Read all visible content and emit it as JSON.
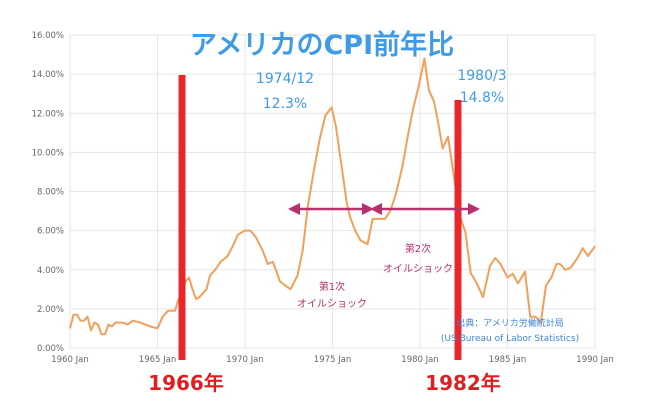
{
  "chart_data": {
    "type": "line",
    "title": "アメリカのCPI前年比",
    "x_ticks": [
      "1960 Jan",
      "1965 Jan",
      "1970 Jan",
      "1975 Jan",
      "1980 Jan",
      "1985 Jan",
      "1990 Jan"
    ],
    "y_ticks": [
      "0.00%",
      "2.00%",
      "4.00%",
      "6.00%",
      "8.00%",
      "10.00%",
      "12.00%",
      "14.00%",
      "16.00%"
    ],
    "xlim": [
      1960.0,
      1990.0
    ],
    "ylim": [
      0,
      16
    ],
    "grid": true,
    "line_color": "#f0a05a",
    "series": [
      {
        "x": [
          1960.0,
          1960.2,
          1960.4,
          1960.6,
          1960.8,
          1961.0,
          1961.2,
          1961.4,
          1961.6,
          1961.8,
          1962.0,
          1962.2,
          1962.4,
          1962.6,
          1962.8,
          1963.0,
          1963.3,
          1963.6,
          1964.0,
          1964.3,
          1964.6,
          1965.0,
          1965.3,
          1965.6,
          1966.0,
          1966.2,
          1966.4,
          1966.6,
          1966.8,
          1967.0,
          1967.2,
          1967.4,
          1967.6,
          1967.8,
          1968.0,
          1968.3,
          1968.6,
          1969.0,
          1969.3,
          1969.6,
          1970.0,
          1970.3,
          1970.6,
          1971.0,
          1971.3,
          1971.6,
          1972.0,
          1972.3,
          1972.6,
          1973.0,
          1973.3,
          1973.6,
          1974.0,
          1974.3,
          1974.6,
          1974.95,
          1975.2,
          1975.5,
          1975.8,
          1976.0,
          1976.3,
          1976.6,
          1977.0,
          1977.3,
          1977.6,
          1978.0,
          1978.3,
          1978.6,
          1979.0,
          1979.3,
          1979.6,
          1979.9,
          1980.25,
          1980.5,
          1980.8,
          1981.0,
          1981.3,
          1981.6,
          1982.0,
          1982.3,
          1982.6,
          1982.9,
          1983.0,
          1983.3,
          1983.6,
          1984.0,
          1984.3,
          1984.6,
          1985.0,
          1985.3,
          1985.6,
          1986.0,
          1986.3,
          1986.6,
          1986.9,
          1987.2,
          1987.5,
          1987.8,
          1988.0,
          1988.3,
          1988.6,
          1989.0,
          1989.3,
          1989.6,
          1990.0
        ],
        "y": [
          1.0,
          1.7,
          1.7,
          1.4,
          1.4,
          1.6,
          0.9,
          1.3,
          1.2,
          0.7,
          0.7,
          1.2,
          1.1,
          1.3,
          1.3,
          1.3,
          1.2,
          1.4,
          1.3,
          1.2,
          1.1,
          1.0,
          1.6,
          1.9,
          1.9,
          2.5,
          2.8,
          3.4,
          3.6,
          3.0,
          2.5,
          2.6,
          2.8,
          3.0,
          3.7,
          4.0,
          4.4,
          4.7,
          5.2,
          5.8,
          6.0,
          6.0,
          5.7,
          5.0,
          4.3,
          4.4,
          3.4,
          3.2,
          3.0,
          3.7,
          5.0,
          7.3,
          9.4,
          10.8,
          11.9,
          12.3,
          11.3,
          9.4,
          7.5,
          6.7,
          6.0,
          5.5,
          5.3,
          6.6,
          6.6,
          6.6,
          7.0,
          7.8,
          9.3,
          10.8,
          12.2,
          13.3,
          14.8,
          13.2,
          12.6,
          11.7,
          10.2,
          10.8,
          8.4,
          6.7,
          5.9,
          3.8,
          3.7,
          3.2,
          2.6,
          4.2,
          4.6,
          4.3,
          3.6,
          3.8,
          3.3,
          3.9,
          1.6,
          1.6,
          1.3,
          3.2,
          3.6,
          4.3,
          4.3,
          4.0,
          4.1,
          4.6,
          5.1,
          4.7,
          5.2
        ]
      }
    ]
  },
  "annotations": {
    "peak1_date": "1974/12",
    "peak1_value": "12.3%",
    "peak2_date": "1980/3",
    "peak2_value": "14.8%",
    "shock1_line1": "第1次",
    "shock1_line2": "オイルショック",
    "shock2_line1": "第2次",
    "shock2_line2": "オイルショック",
    "source_line1": "出典：アメリカ労働統計局",
    "source_line2": "(US Bureau of Labor Statistics)",
    "marker_left_label": "1966年",
    "marker_right_label": "1982年"
  },
  "colors": {
    "title": "#3f9be6",
    "peak_label": "#3f9be6",
    "shock_text": "#b5326e",
    "arrow": "#b5326e",
    "source_text": "#3f86d9",
    "marker_line": "#e8262b",
    "marker_text": "#e01e22",
    "axis_text": "#666666",
    "grid": "#e6e6e6"
  }
}
